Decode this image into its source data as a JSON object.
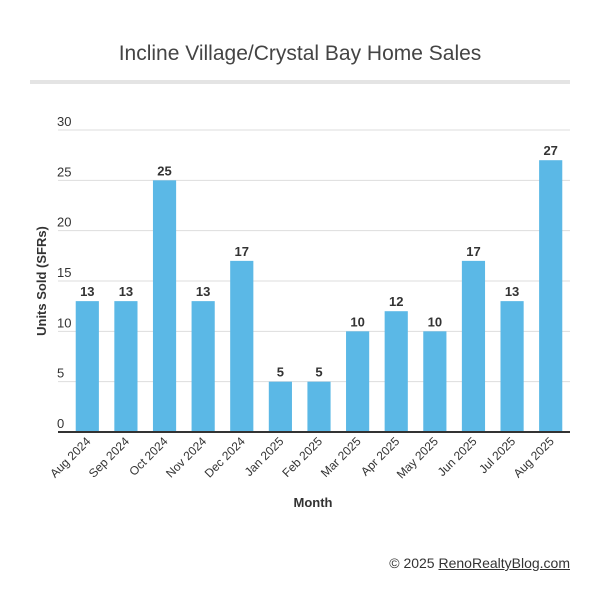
{
  "chart_data": {
    "type": "bar",
    "title": "Incline Village/Crystal Bay Home Sales",
    "xlabel": "Month",
    "ylabel": "Units Sold (SFRs)",
    "categories": [
      "Aug 2024",
      "Sep 2024",
      "Oct 2024",
      "Nov 2024",
      "Dec 2024",
      "Jan 2025",
      "Feb 2025",
      "Mar 2025",
      "Apr 2025",
      "May 2025",
      "Jun 2025",
      "Jul 2025",
      "Aug 2025"
    ],
    "values": [
      13,
      13,
      25,
      13,
      17,
      5,
      5,
      10,
      12,
      10,
      17,
      13,
      27
    ],
    "ylim": [
      0,
      30
    ],
    "yticks": [
      0,
      5,
      10,
      15,
      20,
      25,
      30
    ],
    "grid": true,
    "legend": "none",
    "colors": {
      "bar": "#5bb8e6",
      "grid": "#dddddd",
      "axis": "#333333",
      "label": "#333333"
    }
  },
  "footer": {
    "copyright": "© 2025 ",
    "site": "RenoRealtyBlog.com"
  }
}
